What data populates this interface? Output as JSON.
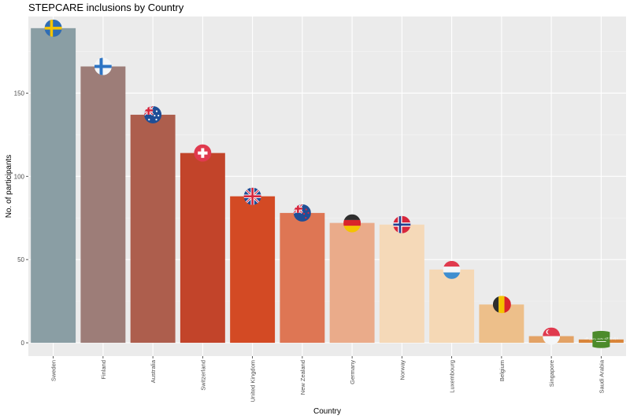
{
  "chart_data": {
    "type": "bar",
    "title": "STEPCARE inclusions by Country",
    "xlabel": "Country",
    "ylabel": "No. of participants",
    "ylim": [
      -8,
      196
    ],
    "yticks": [
      0,
      50,
      100,
      150
    ],
    "grid": true,
    "legend": "none",
    "categories": [
      "Sweden",
      "Finland",
      "Australia",
      "Switzerland",
      "United Kingdom",
      "New Zealand",
      "Germany",
      "Norway",
      "Luxembourg",
      "Belgium",
      "Singapore",
      "Saudi Arabia"
    ],
    "values": [
      189,
      166,
      137,
      114,
      88,
      78,
      72,
      71,
      44,
      23,
      4,
      2
    ],
    "bar_colors": [
      "#8a9ea4",
      "#9d7d78",
      "#ad5e4d",
      "#c2442a",
      "#d34a24",
      "#de7654",
      "#eaab8a",
      "#f5d9b8",
      "#f5d8b5",
      "#edbf8a",
      "#e3a265",
      "#d9853a"
    ],
    "flags": [
      "sweden-flag-icon",
      "finland-flag-icon",
      "australia-flag-icon",
      "switzerland-flag-icon",
      "uk-flag-icon",
      "new-zealand-flag-icon",
      "germany-flag-icon",
      "norway-flag-icon",
      "luxembourg-flag-icon",
      "belgium-flag-icon",
      "singapore-flag-icon",
      "saudi-arabia-flag-icon"
    ],
    "saudi_flag_inscription": "لا إله إلا الله محمد رسول الله"
  }
}
